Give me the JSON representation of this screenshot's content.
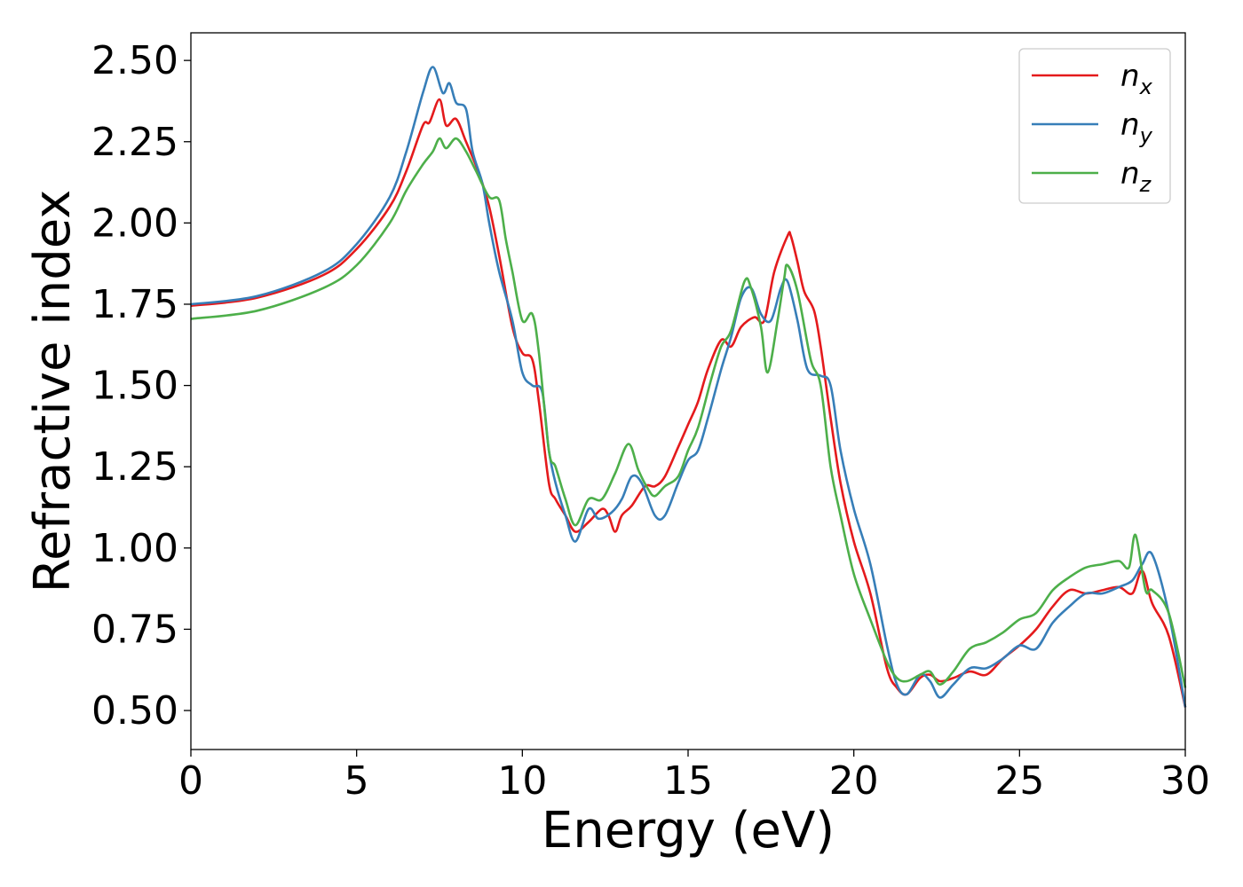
{
  "chart_data": {
    "type": "line",
    "xlabel": "Energy (eV)",
    "ylabel": "Refractive index",
    "xlim": [
      0,
      30
    ],
    "ylim": [
      0.38,
      2.585
    ],
    "xticks": [
      0,
      5,
      10,
      15,
      20,
      25,
      30
    ],
    "xtick_labels": [
      "0",
      "5",
      "10",
      "15",
      "20",
      "25",
      "30"
    ],
    "yticks": [
      0.5,
      0.75,
      1.0,
      1.25,
      1.5,
      1.75,
      2.0,
      2.25,
      2.5
    ],
    "ytick_labels": [
      "0.50",
      "0.75",
      "1.00",
      "1.25",
      "1.50",
      "1.75",
      "2.00",
      "2.25",
      "2.50"
    ],
    "grid": false,
    "legend_position": "top-right",
    "series": [
      {
        "name": "n",
        "subscript": "x",
        "color": "#e41a1c",
        "x": [
          0,
          2,
          4,
          5,
          6,
          6.5,
          7,
          7.2,
          7.5,
          7.7,
          8.0,
          8.3,
          8.7,
          9.0,
          9.3,
          9.7,
          10.0,
          10.3,
          10.5,
          10.8,
          11.0,
          11.3,
          11.6,
          12.0,
          12.4,
          12.6,
          12.8,
          13.0,
          13.3,
          13.7,
          14.0,
          14.3,
          14.7,
          15.0,
          15.3,
          15.6,
          16.0,
          16.3,
          16.6,
          17.0,
          17.3,
          17.6,
          18.0,
          18.1,
          18.3,
          18.5,
          18.8,
          19.0,
          19.3,
          19.6,
          20.0,
          20.5,
          21.0,
          21.3,
          21.6,
          22.0,
          22.3,
          22.6,
          23.0,
          23.5,
          24.0,
          24.5,
          25.0,
          25.5,
          26.0,
          26.5,
          27.0,
          27.5,
          28.0,
          28.4,
          28.7,
          29.0,
          29.5,
          30.0
        ],
        "y": [
          1.745,
          1.77,
          1.84,
          1.92,
          2.05,
          2.16,
          2.3,
          2.31,
          2.38,
          2.3,
          2.32,
          2.25,
          2.15,
          2.05,
          1.9,
          1.68,
          1.6,
          1.58,
          1.45,
          1.2,
          1.15,
          1.1,
          1.05,
          1.08,
          1.12,
          1.1,
          1.05,
          1.1,
          1.13,
          1.19,
          1.19,
          1.22,
          1.31,
          1.38,
          1.45,
          1.55,
          1.64,
          1.62,
          1.68,
          1.71,
          1.7,
          1.85,
          1.96,
          1.96,
          1.88,
          1.79,
          1.73,
          1.62,
          1.4,
          1.2,
          1.02,
          0.86,
          0.63,
          0.57,
          0.55,
          0.6,
          0.61,
          0.59,
          0.6,
          0.62,
          0.61,
          0.66,
          0.7,
          0.75,
          0.82,
          0.87,
          0.86,
          0.87,
          0.88,
          0.86,
          0.93,
          0.83,
          0.73,
          0.51
        ]
      },
      {
        "name": "n",
        "subscript": "y",
        "color": "#377eb8",
        "x": [
          0,
          2,
          4,
          5,
          6,
          6.5,
          7,
          7.3,
          7.6,
          7.8,
          8.0,
          8.3,
          8.5,
          8.8,
          9.0,
          9.3,
          9.7,
          10.0,
          10.3,
          10.6,
          10.8,
          11.0,
          11.3,
          11.6,
          12.0,
          12.3,
          12.7,
          13.0,
          13.3,
          13.6,
          14.0,
          14.3,
          14.7,
          15.0,
          15.3,
          15.6,
          16.0,
          16.3,
          16.6,
          16.9,
          17.2,
          17.5,
          17.8,
          18.0,
          18.3,
          18.6,
          19.0,
          19.3,
          19.6,
          20.0,
          20.5,
          21.0,
          21.3,
          21.6,
          22.0,
          22.3,
          22.6,
          23.0,
          23.5,
          24.0,
          24.5,
          25.0,
          25.5,
          26.0,
          26.5,
          27.0,
          27.5,
          28.0,
          28.4,
          28.7,
          29.0,
          29.5,
          30.0
        ],
        "y": [
          1.75,
          1.775,
          1.85,
          1.935,
          2.08,
          2.22,
          2.4,
          2.48,
          2.4,
          2.43,
          2.37,
          2.35,
          2.22,
          2.12,
          2.0,
          1.85,
          1.7,
          1.54,
          1.5,
          1.48,
          1.3,
          1.2,
          1.1,
          1.02,
          1.12,
          1.09,
          1.11,
          1.15,
          1.22,
          1.2,
          1.1,
          1.1,
          1.2,
          1.27,
          1.3,
          1.4,
          1.55,
          1.65,
          1.77,
          1.8,
          1.72,
          1.7,
          1.8,
          1.82,
          1.7,
          1.55,
          1.53,
          1.5,
          1.3,
          1.12,
          0.95,
          0.7,
          0.58,
          0.55,
          0.61,
          0.59,
          0.54,
          0.58,
          0.63,
          0.63,
          0.66,
          0.7,
          0.69,
          0.77,
          0.82,
          0.86,
          0.86,
          0.88,
          0.9,
          0.95,
          0.98,
          0.8,
          0.51
        ]
      },
      {
        "name": "n",
        "subscript": "z",
        "color": "#4daf4a",
        "x": [
          0,
          2,
          4,
          5,
          6,
          6.5,
          7,
          7.3,
          7.5,
          7.7,
          8.0,
          8.3,
          8.6,
          9.0,
          9.3,
          9.5,
          9.7,
          10.0,
          10.3,
          10.5,
          10.8,
          11.0,
          11.3,
          11.6,
          12.0,
          12.4,
          12.8,
          13.2,
          13.5,
          13.8,
          14.0,
          14.3,
          14.7,
          15.0,
          15.3,
          15.7,
          16.0,
          16.3,
          16.7,
          16.9,
          17.2,
          17.4,
          17.7,
          17.9,
          18.0,
          18.3,
          18.7,
          19.0,
          19.3,
          19.6,
          20.0,
          20.5,
          21.0,
          21.3,
          21.6,
          22.0,
          22.3,
          22.6,
          23.0,
          23.5,
          24.0,
          24.5,
          25.0,
          25.5,
          26.0,
          26.5,
          27.0,
          27.5,
          28.0,
          28.3,
          28.5,
          28.8,
          29.0,
          29.5,
          30.0
        ],
        "y": [
          1.705,
          1.73,
          1.8,
          1.87,
          2.0,
          2.1,
          2.18,
          2.22,
          2.26,
          2.23,
          2.26,
          2.22,
          2.16,
          2.08,
          2.07,
          1.95,
          1.85,
          1.7,
          1.72,
          1.6,
          1.3,
          1.25,
          1.15,
          1.07,
          1.15,
          1.15,
          1.23,
          1.32,
          1.24,
          1.18,
          1.16,
          1.19,
          1.22,
          1.3,
          1.37,
          1.52,
          1.62,
          1.67,
          1.82,
          1.8,
          1.68,
          1.54,
          1.7,
          1.83,
          1.87,
          1.79,
          1.58,
          1.5,
          1.25,
          1.1,
          0.92,
          0.78,
          0.65,
          0.6,
          0.59,
          0.61,
          0.62,
          0.58,
          0.62,
          0.69,
          0.71,
          0.74,
          0.78,
          0.8,
          0.87,
          0.91,
          0.94,
          0.95,
          0.96,
          0.94,
          1.04,
          0.87,
          0.87,
          0.8,
          0.57
        ]
      }
    ]
  }
}
